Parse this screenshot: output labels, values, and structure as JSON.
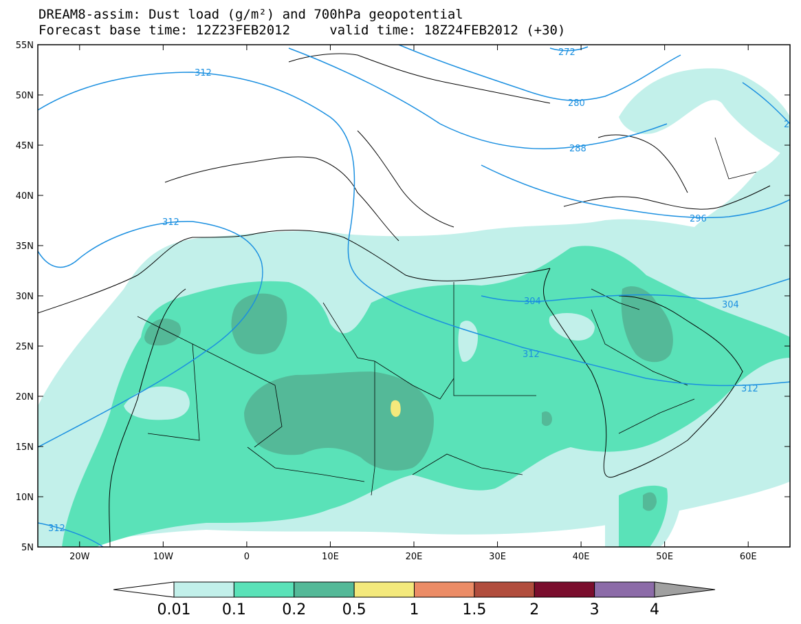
{
  "title": {
    "line1": "DREAM8-assim: Dust load (g/m²) and 700hPa geopotential",
    "line2": "Forecast base time: 12Z23FEB2012     valid time: 18Z24FEB2012 (+30)"
  },
  "map": {
    "lon_range": [
      -25,
      65
    ],
    "lat_range": [
      5,
      55
    ],
    "lat_ticks": [
      "5N",
      "10N",
      "15N",
      "20N",
      "25N",
      "30N",
      "35N",
      "40N",
      "45N",
      "50N",
      "55N"
    ],
    "lon_ticks": [
      "20W",
      "10W",
      "0",
      "10E",
      "20E",
      "30E",
      "40E",
      "50E",
      "60E"
    ],
    "contour_labels": [
      "272",
      "280",
      "288",
      "296",
      "304",
      "312",
      "312",
      "312",
      "312",
      "312",
      "304",
      "2"
    ],
    "fill_colors": {
      "land_bg": "#ffffff",
      "c001": "#c2f0ea",
      "c01": "#5ae2b8",
      "c02": "#54b998",
      "c05": "#f4e97c",
      "contour": "#1a8fe0"
    }
  },
  "colorbar": {
    "labels": [
      "0.01",
      "0.1",
      "0.2",
      "0.5",
      "1",
      "1.5",
      "2",
      "3",
      "4"
    ],
    "colors": [
      "#c2f0ea",
      "#5ae2b8",
      "#54b998",
      "#f4e97c",
      "#ec8c66",
      "#b14d3d",
      "#7a0d2d",
      "#8c6ba8"
    ],
    "under_color": "#ffffff",
    "over_color": "#a0a0a0"
  }
}
